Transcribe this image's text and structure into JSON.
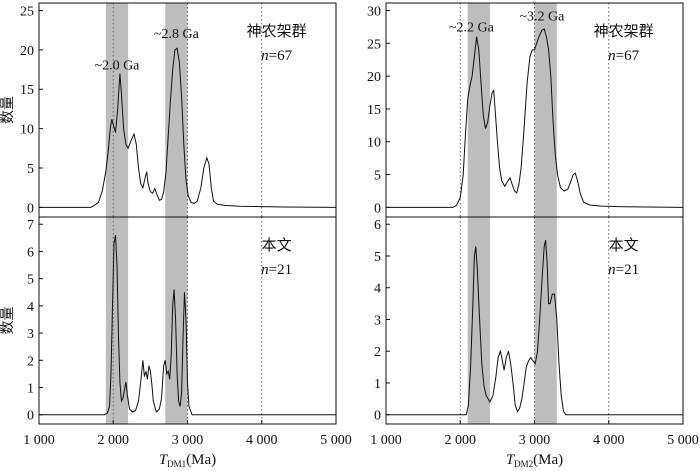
{
  "chart_data": {
    "type": "area",
    "y_axis_label": "数量",
    "x_axis_labels": [
      {
        "main": "T",
        "sub": "DM1",
        "unit": "(Ma)"
      },
      {
        "main": "T",
        "sub": "DM2",
        "unit": "(Ma)"
      }
    ],
    "xlim": [
      1000,
      5000
    ],
    "x_ticks": [
      1000,
      2000,
      3000,
      4000,
      5000
    ],
    "x_tick_labels": [
      "1 000",
      "2 000",
      "3 000",
      "4 000",
      "5 000"
    ],
    "panels": [
      {
        "column": 0,
        "row": 0,
        "ylim": [
          0,
          25
        ],
        "yticks": [
          0,
          5,
          10,
          15,
          20,
          25
        ],
        "annotations": [
          "神农架群",
          "n=67"
        ],
        "peak_labels": [
          {
            "text": "~2.0 Ga",
            "x": 2050,
            "y": 17.5
          },
          {
            "text": "~2.8 Ga",
            "x": 2850,
            "y": 21.5
          }
        ],
        "bands": [
          [
            1900,
            2200
          ],
          [
            2700,
            3000
          ]
        ],
        "ref_lines": [
          2000,
          3000,
          4000
        ],
        "curve": [
          [
            1000,
            0
          ],
          [
            1700,
            0
          ],
          [
            1800,
            0.6
          ],
          [
            1850,
            2
          ],
          [
            1900,
            4.5
          ],
          [
            1930,
            7
          ],
          [
            1960,
            10
          ],
          [
            1980,
            11.2
          ],
          [
            2000,
            10.5
          ],
          [
            2030,
            9.5
          ],
          [
            2060,
            12.5
          ],
          [
            2090,
            17
          ],
          [
            2110,
            14.5
          ],
          [
            2140,
            10
          ],
          [
            2170,
            8
          ],
          [
            2200,
            7.5
          ],
          [
            2240,
            8.5
          ],
          [
            2280,
            9.3
          ],
          [
            2310,
            8
          ],
          [
            2340,
            5
          ],
          [
            2370,
            3
          ],
          [
            2400,
            2.5
          ],
          [
            2430,
            3.8
          ],
          [
            2450,
            4.5
          ],
          [
            2470,
            3
          ],
          [
            2500,
            2
          ],
          [
            2530,
            1.8
          ],
          [
            2560,
            2.4
          ],
          [
            2590,
            1.6
          ],
          [
            2620,
            0.9
          ],
          [
            2650,
            1
          ],
          [
            2680,
            2
          ],
          [
            2710,
            4.5
          ],
          [
            2740,
            9
          ],
          [
            2770,
            13.5
          ],
          [
            2800,
            17.5
          ],
          [
            2830,
            20
          ],
          [
            2860,
            20.2
          ],
          [
            2890,
            18.5
          ],
          [
            2920,
            14
          ],
          [
            2950,
            8
          ],
          [
            2980,
            3.5
          ],
          [
            3010,
            1.5
          ],
          [
            3050,
            0.6
          ],
          [
            3090,
            0.5
          ],
          [
            3130,
            0.8
          ],
          [
            3180,
            2.5
          ],
          [
            3220,
            5
          ],
          [
            3260,
            6.3
          ],
          [
            3290,
            5.5
          ],
          [
            3320,
            2.5
          ],
          [
            3350,
            0.8
          ],
          [
            3400,
            0.4
          ],
          [
            3500,
            0.25
          ],
          [
            3700,
            0.15
          ],
          [
            4000,
            0.1
          ],
          [
            4300,
            0.05
          ],
          [
            5000,
            0
          ]
        ]
      },
      {
        "column": 0,
        "row": 1,
        "ylim": [
          0,
          7
        ],
        "yticks": [
          0,
          1,
          2,
          3,
          4,
          5,
          6,
          7
        ],
        "annotations": [
          "本文",
          "n=21"
        ],
        "peak_labels": [],
        "bands": [
          [
            1900,
            2200
          ],
          [
            2700,
            3000
          ]
        ],
        "ref_lines": [
          2000,
          3000,
          4000
        ],
        "curve": [
          [
            1000,
            0
          ],
          [
            1880,
            0
          ],
          [
            1920,
            0.05
          ],
          [
            1950,
            0.3
          ],
          [
            1970,
            1.5
          ],
          [
            1990,
            4
          ],
          [
            2010,
            6.3
          ],
          [
            2030,
            6.6
          ],
          [
            2050,
            5.5
          ],
          [
            2070,
            3
          ],
          [
            2090,
            1.2
          ],
          [
            2110,
            0.5
          ],
          [
            2130,
            0.6
          ],
          [
            2150,
            0.9
          ],
          [
            2170,
            1.2
          ],
          [
            2190,
            0.7
          ],
          [
            2220,
            0.2
          ],
          [
            2260,
            0.1
          ],
          [
            2300,
            0.15
          ],
          [
            2340,
            0.5
          ],
          [
            2370,
            1.2
          ],
          [
            2400,
            2
          ],
          [
            2420,
            1.4
          ],
          [
            2440,
            1.6
          ],
          [
            2460,
            1.3
          ],
          [
            2480,
            1.8
          ],
          [
            2500,
            1.6
          ],
          [
            2520,
            1.1
          ],
          [
            2540,
            0.5
          ],
          [
            2580,
            0.1
          ],
          [
            2620,
            0.2
          ],
          [
            2650,
            0.6
          ],
          [
            2680,
            1.8
          ],
          [
            2700,
            2
          ],
          [
            2720,
            1.5
          ],
          [
            2740,
            1.6
          ],
          [
            2760,
            1.3
          ],
          [
            2780,
            2.2
          ],
          [
            2800,
            4
          ],
          [
            2820,
            4.6
          ],
          [
            2840,
            3.5
          ],
          [
            2860,
            1.5
          ],
          [
            2880,
            0.5
          ],
          [
            2900,
            0.3
          ],
          [
            2920,
            0.8
          ],
          [
            2940,
            2.8
          ],
          [
            2960,
            4.5
          ],
          [
            2980,
            3.5
          ],
          [
            3000,
            1.2
          ],
          [
            3020,
            0.3
          ],
          [
            3060,
            0
          ],
          [
            5000,
            0
          ]
        ]
      },
      {
        "column": 1,
        "row": 0,
        "ylim": [
          0,
          30
        ],
        "yticks": [
          0,
          5,
          10,
          15,
          20,
          25,
          30
        ],
        "annotations": [
          "神农架群",
          "n=67"
        ],
        "peak_labels": [
          {
            "text": "~2.2 Ga",
            "x": 2150,
            "y": 26.8
          },
          {
            "text": "~3.2 Ga",
            "x": 3100,
            "y": 28.5
          }
        ],
        "bands": [
          [
            2100,
            2400
          ],
          [
            3000,
            3300
          ]
        ],
        "ref_lines": [
          2000,
          3000,
          4000
        ],
        "curve": [
          [
            1000,
            0
          ],
          [
            1900,
            0
          ],
          [
            1950,
            0.3
          ],
          [
            2000,
            1.5
          ],
          [
            2040,
            5
          ],
          [
            2070,
            11
          ],
          [
            2100,
            16.5
          ],
          [
            2130,
            18.5
          ],
          [
            2160,
            20
          ],
          [
            2190,
            23
          ],
          [
            2220,
            26
          ],
          [
            2250,
            24
          ],
          [
            2280,
            19
          ],
          [
            2310,
            14
          ],
          [
            2340,
            12
          ],
          [
            2370,
            13
          ],
          [
            2400,
            15.5
          ],
          [
            2430,
            17.5
          ],
          [
            2450,
            17.8
          ],
          [
            2470,
            15
          ],
          [
            2500,
            10
          ],
          [
            2530,
            6
          ],
          [
            2560,
            4
          ],
          [
            2600,
            3.2
          ],
          [
            2640,
            4
          ],
          [
            2670,
            4.5
          ],
          [
            2700,
            3.5
          ],
          [
            2730,
            2.5
          ],
          [
            2760,
            2.2
          ],
          [
            2790,
            3.5
          ],
          [
            2820,
            6
          ],
          [
            2860,
            12
          ],
          [
            2900,
            19
          ],
          [
            2940,
            23
          ],
          [
            2970,
            24
          ],
          [
            3000,
            24
          ],
          [
            3030,
            25
          ],
          [
            3060,
            26
          ],
          [
            3100,
            27
          ],
          [
            3130,
            27.2
          ],
          [
            3160,
            26
          ],
          [
            3190,
            24
          ],
          [
            3220,
            20
          ],
          [
            3250,
            13
          ],
          [
            3280,
            8
          ],
          [
            3310,
            5
          ],
          [
            3350,
            3
          ],
          [
            3400,
            2.5
          ],
          [
            3450,
            2.8
          ],
          [
            3490,
            4
          ],
          [
            3520,
            5
          ],
          [
            3550,
            5.2
          ],
          [
            3580,
            4
          ],
          [
            3620,
            2
          ],
          [
            3660,
            0.8
          ],
          [
            3750,
            0.35
          ],
          [
            3900,
            0.2
          ],
          [
            4200,
            0.1
          ],
          [
            5000,
            0
          ]
        ]
      },
      {
        "column": 1,
        "row": 1,
        "ylim": [
          0,
          6
        ],
        "yticks": [
          0,
          1,
          2,
          3,
          4,
          5,
          6
        ],
        "annotations": [
          "本文",
          "n=21"
        ],
        "peak_labels": [],
        "bands": [
          [
            2100,
            2400
          ],
          [
            3000,
            3300
          ]
        ],
        "ref_lines": [
          2000,
          3000,
          4000
        ],
        "curve": [
          [
            1000,
            0
          ],
          [
            2080,
            0
          ],
          [
            2110,
            0.3
          ],
          [
            2140,
            1.5
          ],
          [
            2170,
            3.5
          ],
          [
            2190,
            5
          ],
          [
            2210,
            5.3
          ],
          [
            2230,
            4.6
          ],
          [
            2260,
            3
          ],
          [
            2290,
            1.6
          ],
          [
            2320,
            0.9
          ],
          [
            2350,
            0.6
          ],
          [
            2400,
            0.4
          ],
          [
            2440,
            0.6
          ],
          [
            2480,
            1.2
          ],
          [
            2510,
            1.8
          ],
          [
            2540,
            2
          ],
          [
            2560,
            1.8
          ],
          [
            2590,
            1.4
          ],
          [
            2620,
            1.8
          ],
          [
            2650,
            2
          ],
          [
            2680,
            1.6
          ],
          [
            2710,
            1
          ],
          [
            2740,
            0.3
          ],
          [
            2770,
            0.1
          ],
          [
            2800,
            0.2
          ],
          [
            2830,
            0.5
          ],
          [
            2860,
            1
          ],
          [
            2890,
            1.5
          ],
          [
            2920,
            1.7
          ],
          [
            2950,
            1.8
          ],
          [
            2980,
            1.7
          ],
          [
            3010,
            1.6
          ],
          [
            3040,
            2
          ],
          [
            3070,
            3
          ],
          [
            3100,
            4.2
          ],
          [
            3130,
            5.3
          ],
          [
            3150,
            5.5
          ],
          [
            3170,
            4.8
          ],
          [
            3190,
            3.5
          ],
          [
            3210,
            3.5
          ],
          [
            3240,
            3.8
          ],
          [
            3270,
            3.8
          ],
          [
            3300,
            3
          ],
          [
            3330,
            1.6
          ],
          [
            3360,
            0.6
          ],
          [
            3390,
            0.1
          ],
          [
            3420,
            0
          ],
          [
            5000,
            0
          ]
        ]
      }
    ]
  }
}
